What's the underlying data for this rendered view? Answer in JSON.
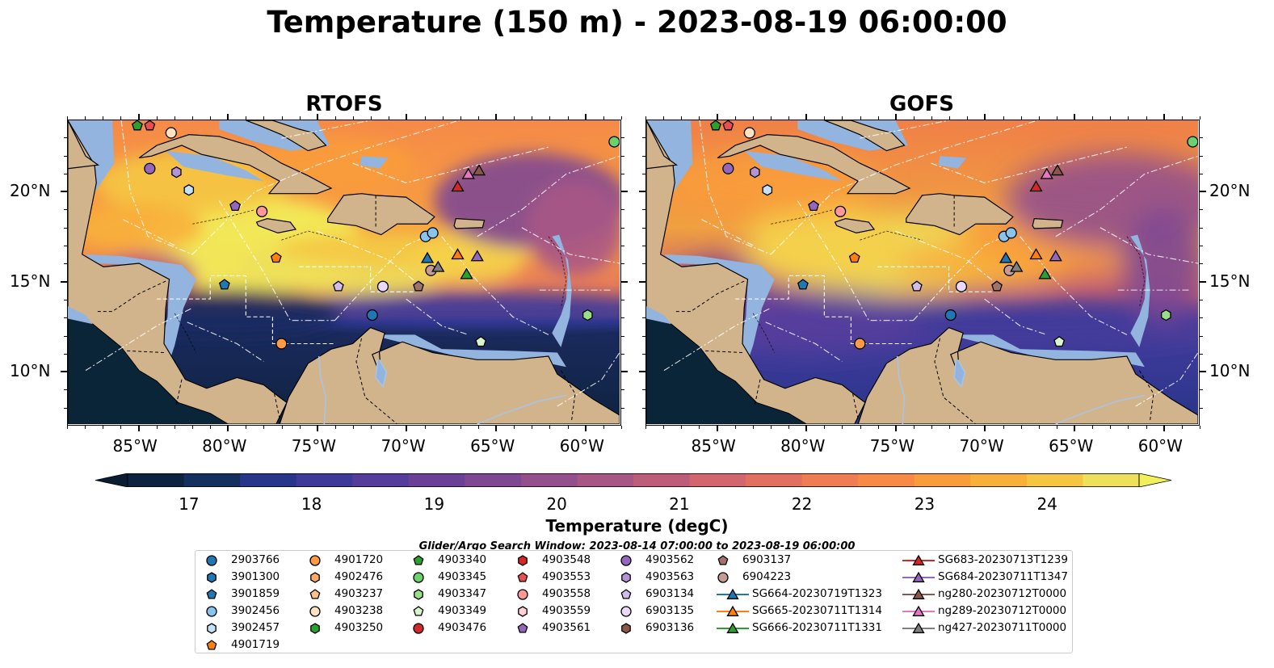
{
  "title": "Temperature (150 m) - 2023-08-19 06:00:00",
  "panels": [
    {
      "title": "RTOFS",
      "color_variant": "warm"
    },
    {
      "title": "GOFS",
      "color_variant": "cool"
    }
  ],
  "lon_ticks": [
    "85°W",
    "80°W",
    "75°W",
    "70°W",
    "65°W",
    "60°W"
  ],
  "lat_ticks": [
    "20°N",
    "15°N",
    "10°N"
  ],
  "map_extent": {
    "lon": [
      -89,
      -58
    ],
    "lat": [
      7,
      24
    ]
  },
  "colorbar": {
    "label": "Temperature (degC)",
    "ticks": [
      "17",
      "18",
      "19",
      "20",
      "21",
      "22",
      "23",
      "24"
    ],
    "range": [
      16.5,
      24.75
    ],
    "colors": [
      "#0e2340",
      "#15305e",
      "#27358a",
      "#3e3a9a",
      "#553d9c",
      "#6b4197",
      "#7f4892",
      "#93508c",
      "#a85686",
      "#bd5d7a",
      "#d2666e",
      "#e27060",
      "#ef7c52",
      "#f78a44",
      "#f99c3b",
      "#f8b03b",
      "#f5c643",
      "#eee059"
    ]
  },
  "search_window": "Glider/Argo Search Window: 2023-08-14 07:00:00 to 2023-08-19 06:00:00",
  "colors": {
    "land": "#d2b48c",
    "shelf": "#92b4de",
    "deep": "#092438"
  },
  "legend": {
    "columns": [
      [
        {
          "label": "2903766",
          "marker": "circle",
          "color": "#1f77b4"
        },
        {
          "label": "3901300",
          "marker": "hexagon",
          "color": "#1f77b4"
        },
        {
          "label": "3901859",
          "marker": "pentagon",
          "color": "#1f77b4"
        },
        {
          "label": "3902456",
          "marker": "circle",
          "color": "#88c4ee"
        },
        {
          "label": "3902457",
          "marker": "hexagon",
          "color": "#c3e2f6"
        },
        {
          "label": "4901719",
          "marker": "pentagon",
          "color": "#ff7f0e"
        }
      ],
      [
        {
          "label": "4901720",
          "marker": "circle",
          "color": "#ff9a45"
        },
        {
          "label": "4902476",
          "marker": "hexagon",
          "color": "#ffaa66"
        },
        {
          "label": "4903237",
          "marker": "pentagon",
          "color": "#ffc08a"
        },
        {
          "label": "4903238",
          "marker": "circle",
          "color": "#ffe2c2"
        },
        {
          "label": "4903250",
          "marker": "hexagon",
          "color": "#2ca02c"
        }
      ],
      [
        {
          "label": "4903340",
          "marker": "pentagon",
          "color": "#2ca02c"
        },
        {
          "label": "4903345",
          "marker": "circle",
          "color": "#6bd16b"
        },
        {
          "label": "4903347",
          "marker": "hexagon",
          "color": "#98df8a"
        },
        {
          "label": "4903349",
          "marker": "pentagon",
          "color": "#d8f5cf"
        },
        {
          "label": "4903476",
          "marker": "circle",
          "color": "#d62728"
        }
      ],
      [
        {
          "label": "4903548",
          "marker": "hexagon",
          "color": "#d62728"
        },
        {
          "label": "4903553",
          "marker": "pentagon",
          "color": "#e84f50"
        },
        {
          "label": "4903558",
          "marker": "circle",
          "color": "#ff9896"
        },
        {
          "label": "4903559",
          "marker": "hexagon",
          "color": "#ffd0d0"
        },
        {
          "label": "4903561",
          "marker": "pentagon",
          "color": "#9467bd"
        }
      ],
      [
        {
          "label": "4903562",
          "marker": "circle",
          "color": "#9467bd"
        },
        {
          "label": "4903563",
          "marker": "hexagon",
          "color": "#b393d6"
        },
        {
          "label": "6903134",
          "marker": "pentagon",
          "color": "#d2bde8"
        },
        {
          "label": "6903135",
          "marker": "circle",
          "color": "#ead9f8"
        },
        {
          "label": "6903136",
          "marker": "hexagon",
          "color": "#8c564b"
        }
      ],
      [
        {
          "label": "6903137",
          "marker": "pentagon",
          "color": "#a0736a"
        },
        {
          "label": "6904223",
          "marker": "circle",
          "color": "#c49c94"
        },
        {
          "label": "SG664-20230719T1323",
          "marker": "triangle",
          "color": "#1f77b4"
        },
        {
          "label": "SG665-20230711T1314",
          "marker": "triangle",
          "color": "#ff7f0e"
        },
        {
          "label": "SG666-20230711T1331",
          "marker": "triangle",
          "color": "#2ca02c"
        }
      ],
      [
        {
          "label": "SG683-20230713T1239",
          "marker": "triangle",
          "color": "#d62728"
        },
        {
          "label": "SG684-20230711T1347",
          "marker": "triangle",
          "color": "#9467bd"
        },
        {
          "label": "ng280-20230712T0000",
          "marker": "triangle",
          "color": "#8c564b"
        },
        {
          "label": "ng289-20230712T0000",
          "marker": "triangle",
          "color": "#e377c2"
        },
        {
          "label": "ng427-20230711T0000",
          "marker": "triangle",
          "color": "#7f7f7f"
        }
      ]
    ]
  },
  "markers": [
    {
      "id": "4903340",
      "lon": -85.1,
      "lat": 23.7
    },
    {
      "id": "4903553",
      "lon": -84.4,
      "lat": 23.7
    },
    {
      "id": "4903238",
      "lon": -83.2,
      "lat": 23.3
    },
    {
      "id": "4903345",
      "lon": -58.3,
      "lat": 22.8
    },
    {
      "id": "4903562",
      "lon": -84.4,
      "lat": 21.3
    },
    {
      "id": "4903563",
      "lon": -82.9,
      "lat": 21.1
    },
    {
      "id": "3902457",
      "lon": -82.2,
      "lat": 20.1
    },
    {
      "id": "4903561",
      "lon": -79.6,
      "lat": 19.2
    },
    {
      "id": "4903558",
      "lon": -78.1,
      "lat": 18.9
    },
    {
      "id": "3902456",
      "lon": -68.9,
      "lat": 17.5
    },
    {
      "id": "3902456",
      "lon": -68.5,
      "lat": 17.7
    },
    {
      "id": "4901719",
      "lon": -77.3,
      "lat": 16.3
    },
    {
      "id": "3901859",
      "lon": -80.2,
      "lat": 14.8
    },
    {
      "id": "6903134",
      "lon": -73.8,
      "lat": 14.7
    },
    {
      "id": "6903135",
      "lon": -71.3,
      "lat": 14.7
    },
    {
      "id": "6903137",
      "lon": -69.3,
      "lat": 14.7
    },
    {
      "id": "6904223",
      "lon": -68.6,
      "lat": 15.6
    },
    {
      "id": "2903766",
      "lon": -71.9,
      "lat": 13.1
    },
    {
      "id": "4903347",
      "lon": -59.8,
      "lat": 13.1
    },
    {
      "id": "4901720",
      "lon": -77.0,
      "lat": 11.5
    },
    {
      "id": "4903349",
      "lon": -65.8,
      "lat": 11.6
    },
    {
      "id": "SG664-20230719T1323",
      "lon": -68.8,
      "lat": 16.3
    },
    {
      "id": "ng427-20230711T0000",
      "lon": -68.2,
      "lat": 15.8
    },
    {
      "id": "SG665-20230711T1314",
      "lon": -67.1,
      "lat": 16.5
    },
    {
      "id": "SG684-20230711T1347",
      "lon": -66.0,
      "lat": 16.4
    },
    {
      "id": "SG666-20230711T1331",
      "lon": -66.6,
      "lat": 15.4
    },
    {
      "id": "SG683-20230713T1239",
      "lon": -67.1,
      "lat": 20.3
    },
    {
      "id": "ng289-20230712T0000",
      "lon": -66.5,
      "lat": 21.0
    },
    {
      "id": "ng280-20230712T0000",
      "lon": -65.9,
      "lat": 21.2
    }
  ]
}
